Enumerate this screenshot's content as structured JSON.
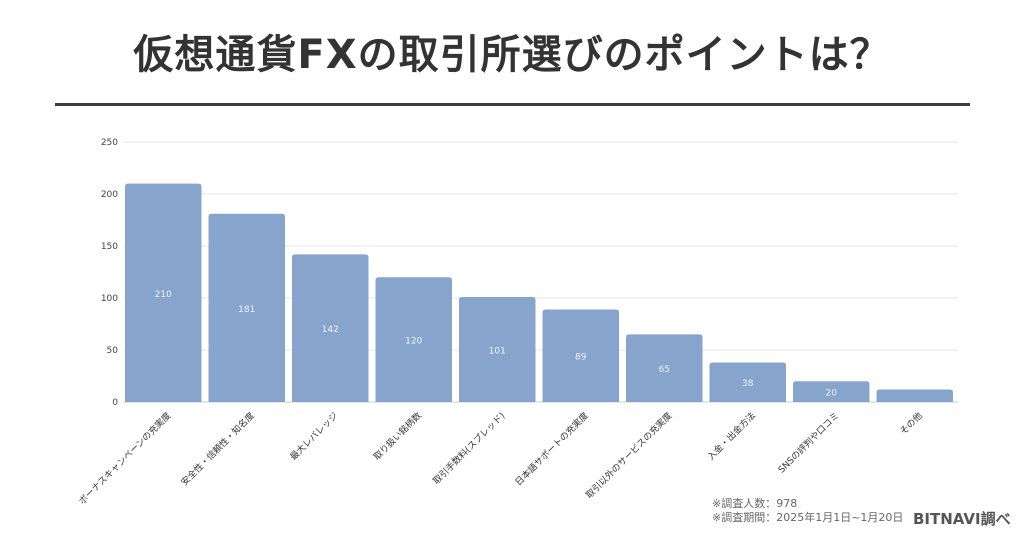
{
  "title": "仮想通貨FXの取引所選びのポイントは？",
  "chart_data": {
    "type": "bar",
    "title": "",
    "xlabel": "",
    "ylabel": "",
    "ylim": [
      0,
      250
    ],
    "yticks": [
      0,
      50,
      100,
      150,
      200,
      250
    ],
    "grid": true,
    "bar_color": "#87a5cc",
    "categories": [
      "ボーナスキャンペーンの充実度",
      "安全性・信頼性・知名度",
      "最大レバレッジ",
      "取り扱い銘柄数",
      "取引手数料(スプレッド)",
      "日本語サポートの充実度",
      "取引以外のサービスの充実度",
      "入金・出金方法",
      "SNSの評判や口コミ",
      "その他"
    ],
    "values": [
      210,
      181,
      142,
      120,
      101,
      89,
      65,
      38,
      20,
      12
    ],
    "data_labels": [
      "210",
      "181",
      "142",
      "120",
      "101",
      "89",
      "65",
      "38",
      "20",
      ""
    ]
  },
  "footer": {
    "respondents": "※調査人数：978",
    "period": "※調査期間：2025年1月1日~1月20日",
    "brand": "BITNAVI調べ"
  }
}
